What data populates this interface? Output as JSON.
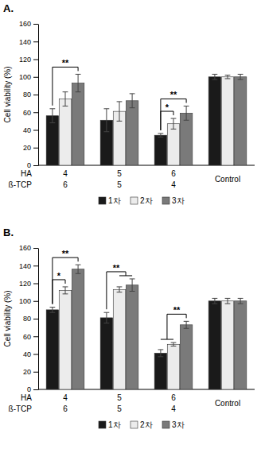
{
  "chart_data": [
    {
      "type": "bar",
      "title": "A.",
      "y_label": "Cell viability (%)",
      "categories": [
        "4",
        "5",
        "6",
        "Control"
      ],
      "category_label": "HA",
      "categories_row2": {
        "label": "ß-TCP",
        "labels": [
          "6",
          "5",
          "4",
          null
        ]
      },
      "series": [
        {
          "name": "1차",
          "color": "#1a1a1a",
          "values": [
            56,
            51,
            34,
            100
          ],
          "errors": [
            8,
            13,
            2,
            3
          ]
        },
        {
          "name": "2차",
          "color": "#ececec",
          "values": [
            75,
            61,
            47,
            100
          ],
          "errors": [
            8,
            11,
            6,
            2
          ]
        },
        {
          "name": "3차",
          "color": "#7a7a7a",
          "values": [
            93,
            73,
            59,
            100
          ],
          "errors": [
            10,
            8,
            8,
            3
          ]
        }
      ],
      "ylim": [
        0,
        160
      ],
      "yticks": [
        0,
        20,
        40,
        60,
        80,
        100,
        120,
        140,
        160
      ],
      "legend": "bottom",
      "annotations": [
        {
          "text": "**",
          "category": 0,
          "left": [
            0
          ],
          "right": [
            2
          ]
        },
        {
          "text": "*",
          "category": 2,
          "left": [
            0
          ],
          "right": [
            1
          ]
        },
        {
          "text": "**",
          "category": 2,
          "left": [
            0
          ],
          "right": [
            2
          ]
        }
      ]
    },
    {
      "type": "bar",
      "title": "B.",
      "y_label": "Cell viability (%)",
      "categories": [
        "4",
        "5",
        "6",
        "Control"
      ],
      "category_label": "HA",
      "categories_row2": {
        "label": "ß-TCP",
        "labels": [
          "6",
          "5",
          "4",
          null
        ]
      },
      "series": [
        {
          "name": "1차",
          "color": "#1a1a1a",
          "values": [
            90,
            81,
            41,
            100
          ],
          "errors": [
            3,
            6,
            4,
            3
          ]
        },
        {
          "name": "2차",
          "color": "#ececec",
          "values": [
            112,
            113,
            51,
            100
          ],
          "errors": [
            4,
            3,
            2,
            3
          ]
        },
        {
          "name": "3차",
          "color": "#7a7a7a",
          "values": [
            136,
            118,
            73,
            100
          ],
          "errors": [
            5,
            7,
            4,
            3
          ]
        }
      ],
      "ylim": [
        0,
        160
      ],
      "yticks": [
        0,
        20,
        40,
        60,
        80,
        100,
        120,
        140,
        160
      ],
      "legend": "bottom",
      "annotations": [
        {
          "text": "*",
          "category": 0,
          "left": [
            0
          ],
          "right": [
            1
          ]
        },
        {
          "text": "**",
          "category": 0,
          "left": [
            0
          ],
          "right": [
            2
          ]
        },
        {
          "text": "**",
          "category": 1,
          "left": [
            0
          ],
          "right": [
            1,
            2
          ]
        },
        {
          "text": "**",
          "category": 2,
          "left": [
            0,
            1
          ],
          "right": [
            2
          ]
        }
      ]
    }
  ]
}
